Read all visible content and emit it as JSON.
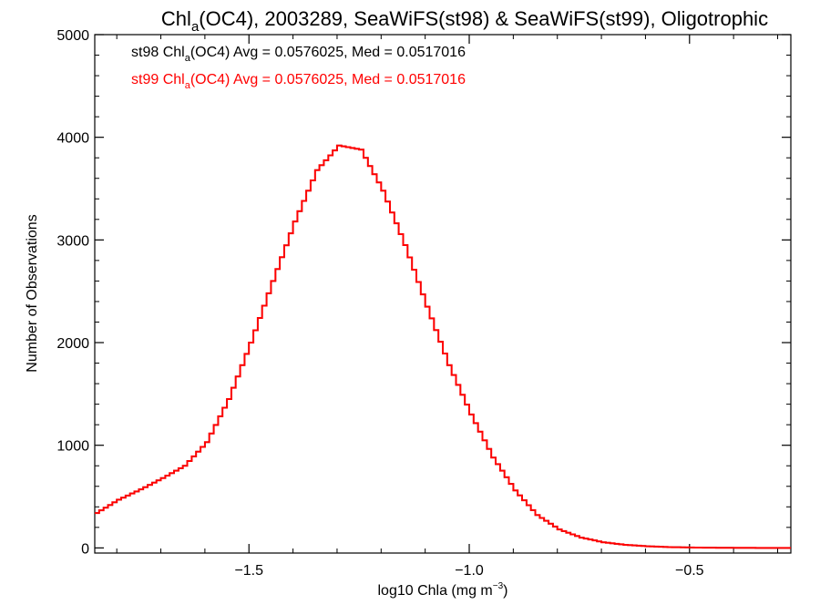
{
  "chart_data": {
    "type": "line",
    "title": {
      "main_a": "Chl",
      "main_sub": "a",
      "main_b": "(OC4), 2003289, SeaWiFS(st98) & SeaWiFS(st99), Oligotrophic"
    },
    "xlabel": {
      "main": "log10 Chla (mg m",
      "sup": "−3",
      "end": ")"
    },
    "ylabel": "Number of Observations",
    "xlim": [
      -1.85,
      -0.27
    ],
    "ylim": [
      -50,
      5000
    ],
    "xticks": [
      -1.5,
      -1.0,
      -0.5
    ],
    "xtick_labels": [
      "−1.5",
      "−1.0",
      "−0.5"
    ],
    "yticks": [
      0,
      1000,
      2000,
      3000,
      4000,
      5000
    ],
    "ytick_labels": [
      "0",
      "1000",
      "2000",
      "3000",
      "4000",
      "5000"
    ],
    "annotations": [
      {
        "pre": "st98 Chl",
        "sub": "a",
        "post": "(OC4) Avg = 0.0576025, Med = 0.0517016",
        "color": "#000000"
      },
      {
        "pre": "st99 Chl",
        "sub": "a",
        "post": "(OC4) Avg = 0.0576025, Med = 0.0517016",
        "color": "#ff0000"
      }
    ],
    "series": [
      {
        "color": "#000000",
        "x": [
          -1.85,
          -1.8,
          -1.75,
          -1.7,
          -1.65,
          -1.6,
          -1.55,
          -1.5,
          -1.45,
          -1.4,
          -1.35,
          -1.3,
          -1.25,
          -1.2,
          -1.15,
          -1.1,
          -1.05,
          -1.0,
          -0.95,
          -0.9,
          -0.85,
          -0.8,
          -0.75,
          -0.7,
          -0.65,
          -0.6,
          -0.55,
          -0.5,
          -0.45,
          -0.4,
          -0.35,
          -0.3,
          -0.27
        ],
        "values": [
          340,
          470,
          570,
          680,
          800,
          1030,
          1450,
          2000,
          2600,
          3180,
          3680,
          3920,
          3880,
          3480,
          2950,
          2350,
          1780,
          1300,
          880,
          560,
          320,
          180,
          100,
          55,
          30,
          16,
          8,
          4,
          2,
          1,
          0,
          0,
          0
        ]
      },
      {
        "color": "#ff0000",
        "x": [
          -1.85,
          -1.8,
          -1.75,
          -1.7,
          -1.65,
          -1.6,
          -1.55,
          -1.5,
          -1.45,
          -1.4,
          -1.35,
          -1.3,
          -1.25,
          -1.2,
          -1.15,
          -1.1,
          -1.05,
          -1.0,
          -0.95,
          -0.9,
          -0.85,
          -0.8,
          -0.75,
          -0.7,
          -0.65,
          -0.6,
          -0.55,
          -0.5,
          -0.45,
          -0.4,
          -0.35,
          -0.3,
          -0.27
        ],
        "values": [
          340,
          470,
          570,
          680,
          800,
          1030,
          1450,
          2000,
          2600,
          3180,
          3680,
          3920,
          3880,
          3480,
          2950,
          2350,
          1780,
          1300,
          880,
          560,
          320,
          180,
          100,
          55,
          30,
          16,
          8,
          4,
          2,
          1,
          0,
          0,
          0
        ]
      }
    ],
    "grid": false
  }
}
